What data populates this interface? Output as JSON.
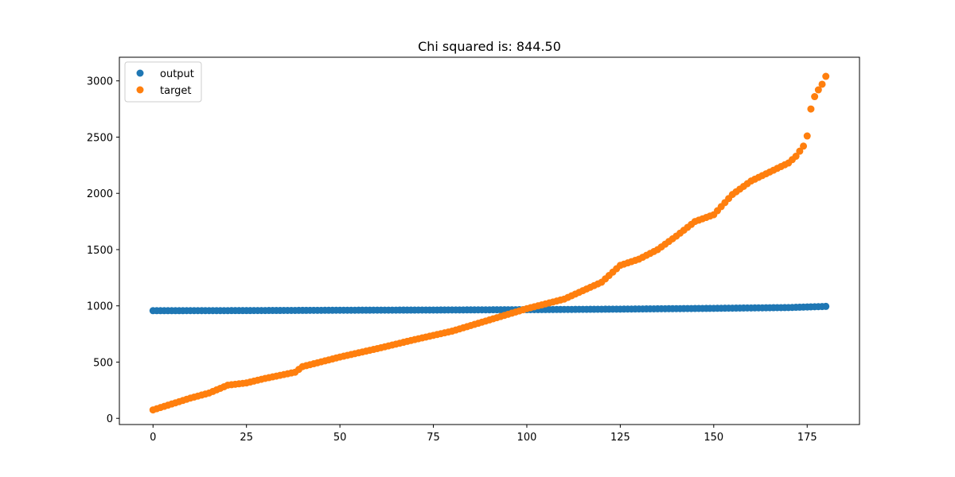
{
  "chart_data": {
    "type": "scatter",
    "title": "Chi squared is: 844.50",
    "xlabel": "",
    "ylabel": "",
    "xlim": [
      -9,
      189
    ],
    "ylim": [
      -55,
      3210
    ],
    "x_ticks": [
      0,
      25,
      50,
      75,
      100,
      125,
      150,
      175
    ],
    "y_ticks": [
      0,
      500,
      1000,
      1500,
      2000,
      2500,
      3000
    ],
    "grid": false,
    "legend_position": "upper-left",
    "x_start": 0,
    "x_end": 180,
    "series": [
      {
        "name": "output",
        "color": "#1f77b4",
        "keypoints": [
          [
            0,
            957
          ],
          [
            25,
            958
          ],
          [
            50,
            961
          ],
          [
            75,
            963
          ],
          [
            100,
            966
          ],
          [
            125,
            971
          ],
          [
            150,
            978
          ],
          [
            170,
            985
          ],
          [
            180,
            995
          ]
        ]
      },
      {
        "name": "target",
        "color": "#ff7f0e",
        "keypoints": [
          [
            0,
            75
          ],
          [
            10,
            180
          ],
          [
            15,
            225
          ],
          [
            20,
            295
          ],
          [
            25,
            315
          ],
          [
            30,
            355
          ],
          [
            38,
            410
          ],
          [
            40,
            460
          ],
          [
            50,
            545
          ],
          [
            60,
            620
          ],
          [
            70,
            700
          ],
          [
            80,
            775
          ],
          [
            90,
            875
          ],
          [
            100,
            975
          ],
          [
            110,
            1060
          ],
          [
            120,
            1210
          ],
          [
            125,
            1360
          ],
          [
            130,
            1415
          ],
          [
            135,
            1500
          ],
          [
            140,
            1620
          ],
          [
            145,
            1750
          ],
          [
            150,
            1810
          ],
          [
            155,
            1990
          ],
          [
            160,
            2110
          ],
          [
            165,
            2190
          ],
          [
            170,
            2270
          ],
          [
            172,
            2330
          ],
          [
            174,
            2420
          ],
          [
            175,
            2510
          ],
          [
            176,
            2750
          ],
          [
            177,
            2860
          ],
          [
            178,
            2920
          ],
          [
            179,
            2970
          ],
          [
            180,
            3040
          ]
        ]
      }
    ]
  }
}
